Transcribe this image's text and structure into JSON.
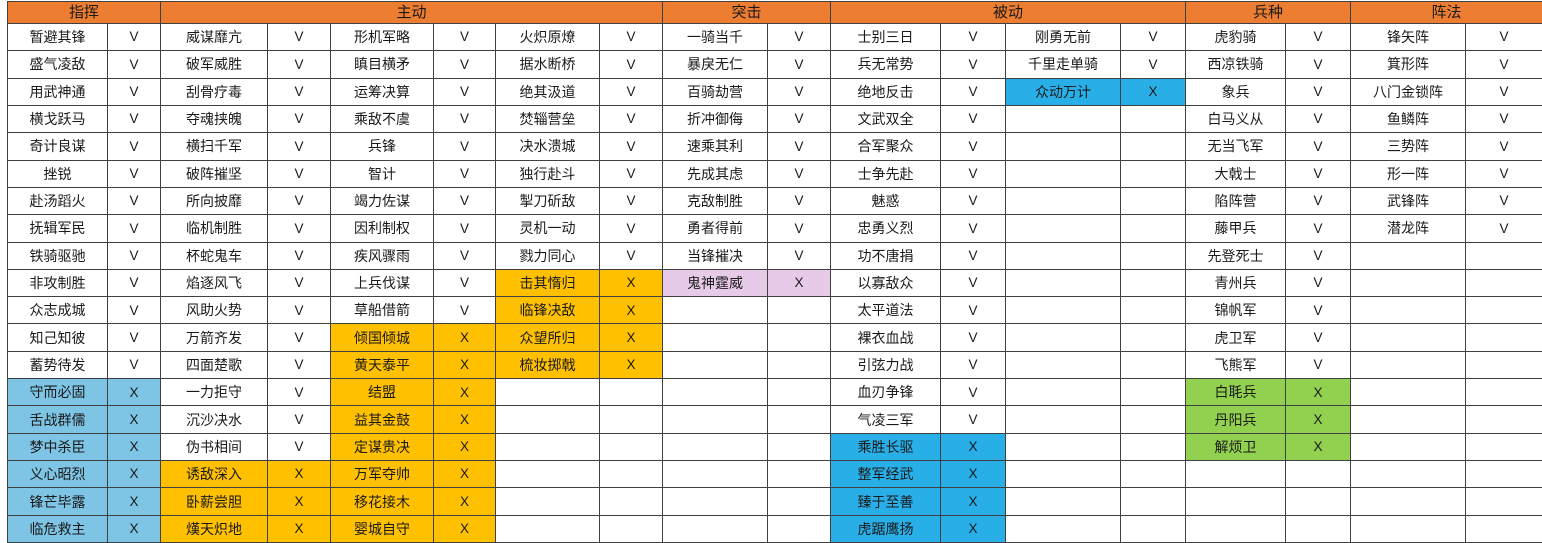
{
  "sheet": {
    "colors": {
      "header": "#ED7D31",
      "lightblue": "#7EC4E4",
      "vividblue": "#29AFE8",
      "gold": "#FFC000",
      "green": "#92D050",
      "pink": "#E7CAE7",
      "white": "#FFFFFF"
    },
    "marks": {
      "have": "V",
      "missing": "X"
    },
    "groups": [
      {
        "key": "zhihui",
        "label": "指挥",
        "columns": [
          [
            [
              "暂避其锋",
              "V",
              ""
            ],
            [
              "盛气凌敌",
              "V",
              ""
            ],
            [
              "用武神通",
              "V",
              ""
            ],
            [
              "横戈跃马",
              "V",
              ""
            ],
            [
              "奇计良谋",
              "V",
              ""
            ],
            [
              "挫锐",
              "V",
              ""
            ],
            [
              "赴汤蹈火",
              "V",
              ""
            ],
            [
              "抚辑军民",
              "V",
              ""
            ],
            [
              "铁骑驱驰",
              "V",
              ""
            ],
            [
              "非攻制胜",
              "V",
              ""
            ],
            [
              "众志成城",
              "V",
              ""
            ],
            [
              "知己知彼",
              "V",
              ""
            ],
            [
              "蓄势待发",
              "V",
              ""
            ],
            [
              "守而必固",
              "X",
              "lightblue"
            ],
            [
              "舌战群儒",
              "X",
              "lightblue"
            ],
            [
              "梦中杀臣",
              "X",
              "lightblue"
            ],
            [
              "义心昭烈",
              "X",
              "lightblue"
            ],
            [
              "锋芒毕露",
              "X",
              "lightblue"
            ],
            [
              "临危救主",
              "X",
              "lightblue"
            ]
          ]
        ]
      },
      {
        "key": "zhudong",
        "label": "主动",
        "columns": [
          [
            [
              "威谋靡亢",
              "V",
              ""
            ],
            [
              "破军威胜",
              "V",
              ""
            ],
            [
              "刮骨疗毒",
              "V",
              ""
            ],
            [
              "夺魂挟魄",
              "V",
              ""
            ],
            [
              "横扫千军",
              "V",
              ""
            ],
            [
              "破阵摧坚",
              "V",
              ""
            ],
            [
              "所向披靡",
              "V",
              ""
            ],
            [
              "临机制胜",
              "V",
              ""
            ],
            [
              "杯蛇鬼车",
              "V",
              ""
            ],
            [
              "焰逐风飞",
              "V",
              ""
            ],
            [
              "风助火势",
              "V",
              ""
            ],
            [
              "万箭齐发",
              "V",
              ""
            ],
            [
              "四面楚歌",
              "V",
              ""
            ],
            [
              "一力拒守",
              "V",
              ""
            ],
            [
              "沉沙决水",
              "V",
              ""
            ],
            [
              "伪书相间",
              "V",
              ""
            ],
            [
              "诱敌深入",
              "X",
              "gold"
            ],
            [
              "卧薪尝胆",
              "X",
              "gold"
            ],
            [
              "熯天炽地",
              "X",
              "gold"
            ]
          ],
          [
            [
              "形机军略",
              "V",
              ""
            ],
            [
              "瞋目横矛",
              "V",
              ""
            ],
            [
              "运筹决算",
              "V",
              ""
            ],
            [
              "乘敌不虞",
              "V",
              ""
            ],
            [
              "兵锋",
              "V",
              ""
            ],
            [
              "智计",
              "V",
              ""
            ],
            [
              "竭力佐谋",
              "V",
              ""
            ],
            [
              "因利制权",
              "V",
              ""
            ],
            [
              "疾风骤雨",
              "V",
              ""
            ],
            [
              "上兵伐谋",
              "V",
              ""
            ],
            [
              "草船借箭",
              "V",
              ""
            ],
            [
              "倾国倾城",
              "X",
              "gold"
            ],
            [
              "黄天泰平",
              "X",
              "gold"
            ],
            [
              "结盟",
              "X",
              "gold"
            ],
            [
              "益其金鼓",
              "X",
              "gold"
            ],
            [
              "定谋贵决",
              "X",
              "gold"
            ],
            [
              "万军夺帅",
              "X",
              "gold"
            ],
            [
              "移花接木",
              "X",
              "gold"
            ],
            [
              "婴城自守",
              "X",
              "gold"
            ]
          ],
          [
            [
              "火炽原燎",
              "V",
              ""
            ],
            [
              "据水断桥",
              "V",
              ""
            ],
            [
              "绝其汲道",
              "V",
              ""
            ],
            [
              "焚辎营垒",
              "V",
              ""
            ],
            [
              "决水溃城",
              "V",
              ""
            ],
            [
              "独行赴斗",
              "V",
              ""
            ],
            [
              "掣刀斫敌",
              "V",
              ""
            ],
            [
              "灵机一动",
              "V",
              ""
            ],
            [
              "戮力同心",
              "V",
              ""
            ],
            [
              "击其惰归",
              "X",
              "gold"
            ],
            [
              "临锋决敌",
              "X",
              "gold"
            ],
            [
              "众望所归",
              "X",
              "gold"
            ],
            [
              "梳妆掷戟",
              "X",
              "gold"
            ],
            [
              "",
              "",
              ""
            ],
            [
              "",
              "",
              ""
            ],
            [
              "",
              "",
              ""
            ],
            [
              "",
              "",
              ""
            ],
            [
              "",
              "",
              ""
            ],
            [
              "",
              "",
              ""
            ]
          ]
        ]
      },
      {
        "key": "tuji",
        "label": "突击",
        "columns": [
          [
            [
              "一骑当千",
              "V",
              ""
            ],
            [
              "暴戾无仁",
              "V",
              ""
            ],
            [
              "百骑劫营",
              "V",
              ""
            ],
            [
              "折冲御侮",
              "V",
              ""
            ],
            [
              "速乘其利",
              "V",
              ""
            ],
            [
              "先成其虑",
              "V",
              ""
            ],
            [
              "克敌制胜",
              "V",
              ""
            ],
            [
              "勇者得前",
              "V",
              ""
            ],
            [
              "当锋摧决",
              "V",
              ""
            ],
            [
              "鬼神霆威",
              "X",
              "pink"
            ],
            [
              "",
              "",
              ""
            ],
            [
              "",
              "",
              ""
            ],
            [
              "",
              "",
              ""
            ],
            [
              "",
              "",
              ""
            ],
            [
              "",
              "",
              ""
            ],
            [
              "",
              "",
              ""
            ],
            [
              "",
              "",
              ""
            ],
            [
              "",
              "",
              ""
            ],
            [
              "",
              "",
              ""
            ]
          ]
        ]
      },
      {
        "key": "beidong",
        "label": "被动",
        "columns": [
          [
            [
              "士别三日",
              "V",
              ""
            ],
            [
              "兵无常势",
              "V",
              ""
            ],
            [
              "绝地反击",
              "V",
              ""
            ],
            [
              "文武双全",
              "V",
              ""
            ],
            [
              "合军聚众",
              "V",
              ""
            ],
            [
              "士争先赴",
              "V",
              ""
            ],
            [
              "魅惑",
              "V",
              ""
            ],
            [
              "忠勇义烈",
              "V",
              ""
            ],
            [
              "功不唐捐",
              "V",
              ""
            ],
            [
              "以寡敌众",
              "V",
              ""
            ],
            [
              "太平道法",
              "V",
              ""
            ],
            [
              "裸衣血战",
              "V",
              ""
            ],
            [
              "引弦力战",
              "V",
              ""
            ],
            [
              "血刃争锋",
              "V",
              ""
            ],
            [
              "气凌三军",
              "V",
              ""
            ],
            [
              "乘胜长驱",
              "X",
              "vividblue"
            ],
            [
              "整军经武",
              "X",
              "vividblue"
            ],
            [
              "臻于至善",
              "X",
              "vividblue"
            ],
            [
              "虎踞鹰扬",
              "X",
              "vividblue"
            ]
          ],
          [
            [
              "刚勇无前",
              "V",
              ""
            ],
            [
              "千里走单骑",
              "V",
              ""
            ],
            [
              "众动万计",
              "X",
              "vividblue"
            ],
            [
              "",
              "",
              ""
            ],
            [
              "",
              "",
              ""
            ],
            [
              "",
              "",
              ""
            ],
            [
              "",
              "",
              ""
            ],
            [
              "",
              "",
              ""
            ],
            [
              "",
              "",
              ""
            ],
            [
              "",
              "",
              ""
            ],
            [
              "",
              "",
              ""
            ],
            [
              "",
              "",
              ""
            ],
            [
              "",
              "",
              ""
            ],
            [
              "",
              "",
              ""
            ],
            [
              "",
              "",
              ""
            ],
            [
              "",
              "",
              ""
            ],
            [
              "",
              "",
              ""
            ],
            [
              "",
              "",
              ""
            ],
            [
              "",
              "",
              ""
            ]
          ]
        ]
      },
      {
        "key": "bingzhong",
        "label": "兵种",
        "columns": [
          [
            [
              "虎豹骑",
              "V",
              ""
            ],
            [
              "西凉铁骑",
              "V",
              ""
            ],
            [
              "象兵",
              "V",
              ""
            ],
            [
              "白马义从",
              "V",
              ""
            ],
            [
              "无当飞军",
              "V",
              ""
            ],
            [
              "大戟士",
              "V",
              ""
            ],
            [
              "陷阵营",
              "V",
              ""
            ],
            [
              "藤甲兵",
              "V",
              ""
            ],
            [
              "先登死士",
              "V",
              ""
            ],
            [
              "青州兵",
              "V",
              ""
            ],
            [
              "锦帆军",
              "V",
              ""
            ],
            [
              "虎卫军",
              "V",
              ""
            ],
            [
              "飞熊军",
              "V",
              ""
            ],
            [
              "白毦兵",
              "X",
              "green"
            ],
            [
              "丹阳兵",
              "X",
              "green"
            ],
            [
              "解烦卫",
              "X",
              "green"
            ],
            [
              "",
              "",
              ""
            ],
            [
              "",
              "",
              ""
            ],
            [
              "",
              "",
              ""
            ]
          ]
        ]
      },
      {
        "key": "zhenfa",
        "label": "阵法",
        "columns": [
          [
            [
              "锋矢阵",
              "V",
              ""
            ],
            [
              "箕形阵",
              "V",
              ""
            ],
            [
              "八门金锁阵",
              "V",
              ""
            ],
            [
              "鱼鳞阵",
              "V",
              ""
            ],
            [
              "三势阵",
              "V",
              ""
            ],
            [
              "形一阵",
              "V",
              ""
            ],
            [
              "武锋阵",
              "V",
              ""
            ],
            [
              "潜龙阵",
              "V",
              ""
            ],
            [
              "",
              "",
              ""
            ],
            [
              "",
              "",
              ""
            ],
            [
              "",
              "",
              ""
            ],
            [
              "",
              "",
              ""
            ],
            [
              "",
              "",
              ""
            ],
            [
              "",
              "",
              ""
            ],
            [
              "",
              "",
              ""
            ],
            [
              "",
              "",
              ""
            ],
            [
              "",
              "",
              ""
            ],
            [
              "",
              "",
              ""
            ],
            [
              "",
              "",
              ""
            ]
          ]
        ]
      }
    ]
  }
}
